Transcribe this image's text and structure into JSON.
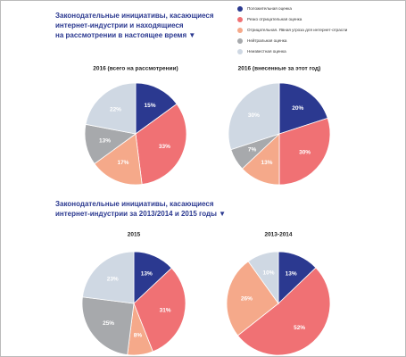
{
  "sections": [
    {
      "title": [
        "Законодательные инициативы, касающиеся",
        "интернет-индустрии и находящиеся",
        "на рассмотрении в настоящее время ▼"
      ]
    },
    {
      "title": [
        "Законодательные инициативы, касающиеся",
        "интернет-индустрии за 2013/2014 и 2015 годы ▼"
      ]
    }
  ],
  "chart_data": [
    {
      "type": "pie",
      "title": "2016 (всего на рассмотрении)",
      "categories": [
        "Положительная оценка",
        "Резко отрицательная оценка",
        "Отрицательная. Явная угроза для интернет-отрасли",
        "Нейтральная оценка",
        "Неизвестная оценка"
      ],
      "values": [
        15,
        33,
        17,
        13,
        22
      ],
      "value_labels": [
        "15%",
        "33%",
        "17%",
        "13%",
        "22%"
      ],
      "colors": [
        "#2b3990",
        "#f07174",
        "#f5a98a",
        "#a7a9ac",
        "#cfd8e3"
      ]
    },
    {
      "type": "pie",
      "title": "2016 (внесенные за этот год)",
      "categories": [
        "Положительная оценка",
        "Резко отрицательная оценка",
        "Отрицательная. Явная угроза для интернет-отрасли",
        "Нейтральная оценка",
        "Неизвестная оценка"
      ],
      "values": [
        20,
        30,
        13,
        7,
        30
      ],
      "value_labels": [
        "20%",
        "30%",
        "13%",
        "7%",
        "30%"
      ],
      "colors": [
        "#2b3990",
        "#f07174",
        "#f5a98a",
        "#a7a9ac",
        "#cfd8e3"
      ]
    },
    {
      "type": "pie",
      "title": "2015",
      "categories": [
        "Положительная оценка",
        "Резко отрицательная оценка",
        "Отрицательная. Явная угроза для интернет-отрасли",
        "Нейтральная оценка",
        "Неизвестная оценка"
      ],
      "values": [
        13,
        31,
        8,
        25,
        23
      ],
      "value_labels": [
        "13%",
        "31%",
        "8%",
        "25%",
        "23%"
      ],
      "colors": [
        "#2b3990",
        "#f07174",
        "#f5a98a",
        "#a7a9ac",
        "#cfd8e3"
      ]
    },
    {
      "type": "pie",
      "title": "2013-2014",
      "categories": [
        "Положительная оценка",
        "Резко отрицательная оценка",
        "Отрицательная. Явная угроза для интернет-отрасли",
        "Неизвестная оценка"
      ],
      "values": [
        13,
        52,
        26,
        10
      ],
      "value_labels": [
        "13%",
        "52%",
        "26%",
        "10%"
      ],
      "colors": [
        "#2b3990",
        "#f07174",
        "#f5a98a",
        "#cfd8e3"
      ]
    }
  ]
}
